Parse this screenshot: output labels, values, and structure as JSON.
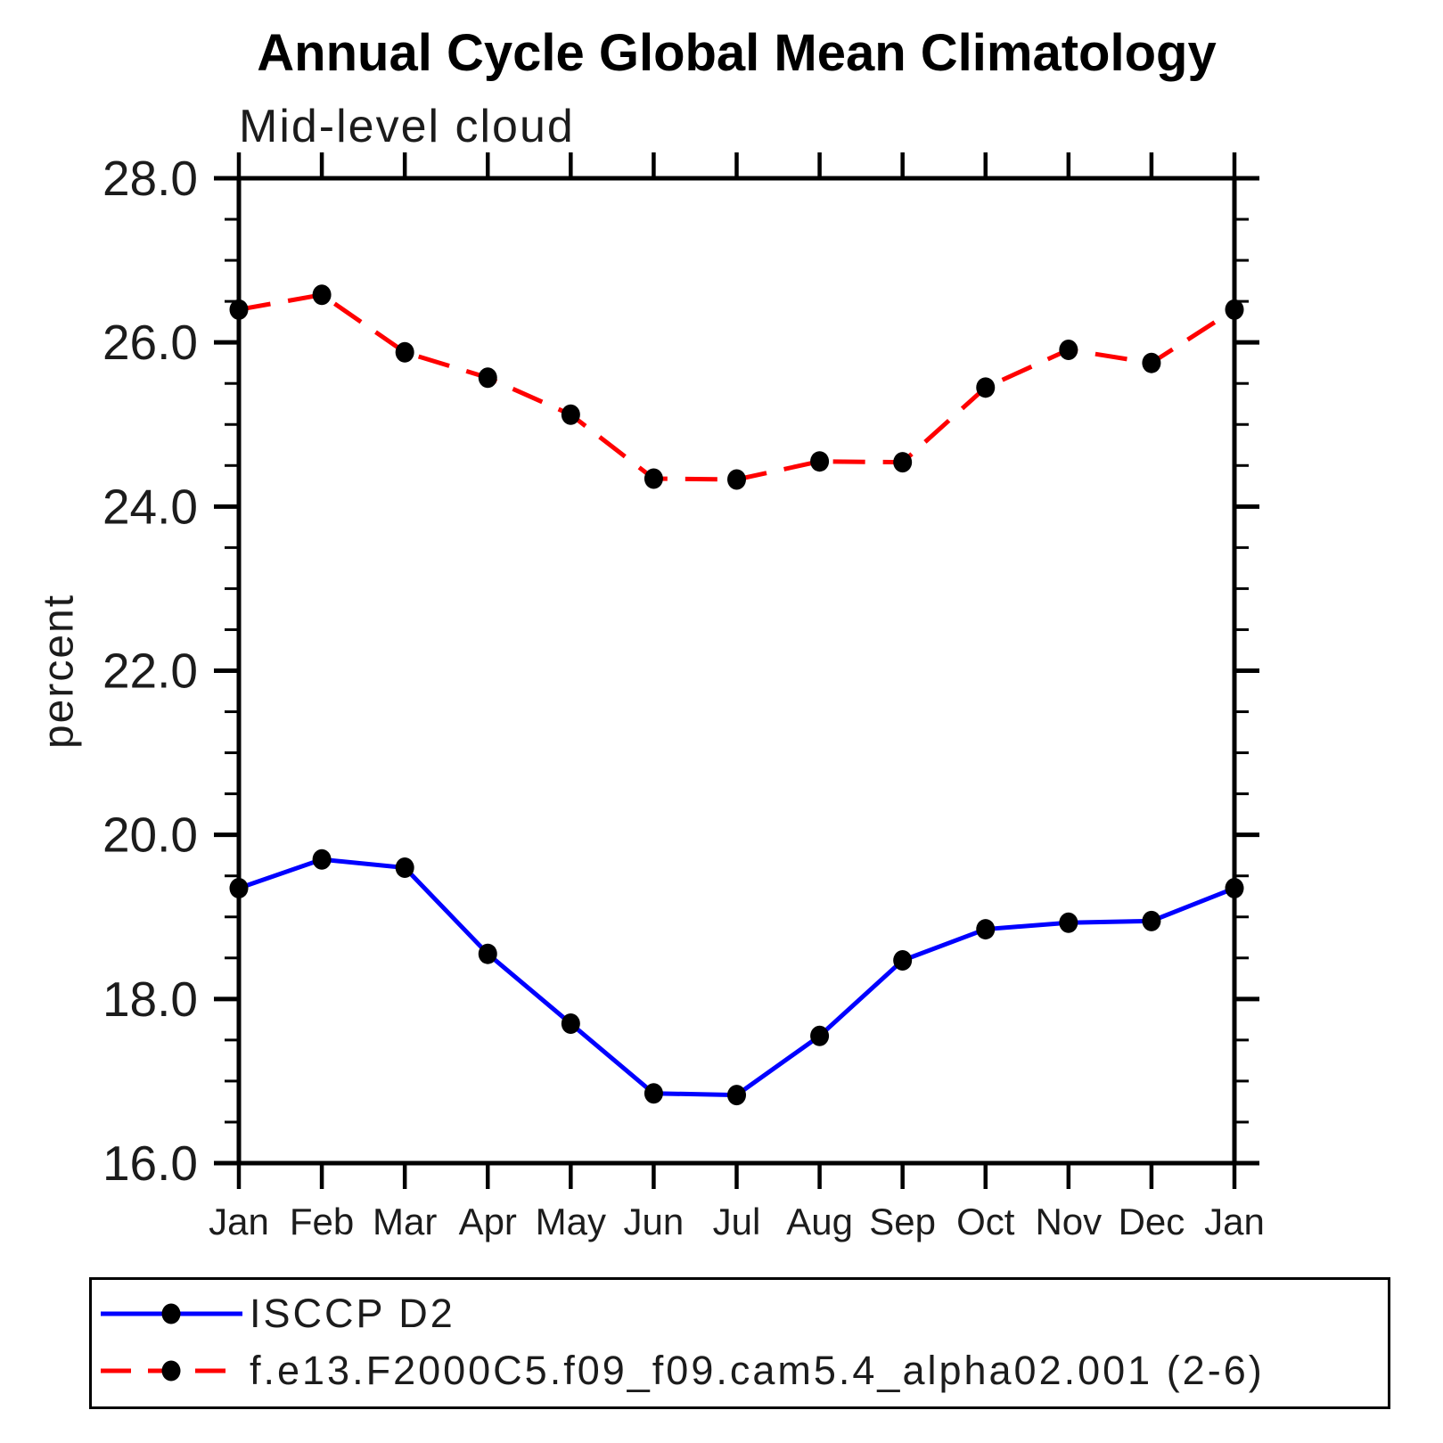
{
  "page": {
    "background": "#ffffff"
  },
  "header": {
    "title": "Annual Cycle Global Mean Climatology",
    "subtitle": "Mid-level cloud"
  },
  "chart_data": {
    "type": "line",
    "title": "Annual Cycle Global Mean Climatology",
    "subtitle": "Mid-level cloud",
    "xlabel": "",
    "ylabel": "percent",
    "categories": [
      "Jan",
      "Feb",
      "Mar",
      "Apr",
      "May",
      "Jun",
      "Jul",
      "Aug",
      "Sep",
      "Oct",
      "Nov",
      "Dec",
      "Jan"
    ],
    "ylim": [
      16.0,
      28.0
    ],
    "ytick_major_interval": 2.0,
    "ytick_minor_interval": 0.5,
    "ytick_labels": [
      "16.0",
      "18.0",
      "20.0",
      "22.0",
      "24.0",
      "26.0",
      "28.0"
    ],
    "grid": false,
    "legend_position": "bottom",
    "frame_color": "#000000",
    "marker_color": "#000000",
    "series": [
      {
        "name": "ISCCP D2",
        "color": "#0000ff",
        "line_style": "solid",
        "marker": "circle",
        "values": [
          19.35,
          19.7,
          19.6,
          18.55,
          17.7,
          16.85,
          16.83,
          17.55,
          18.47,
          18.85,
          18.93,
          18.95,
          19.35
        ]
      },
      {
        "name": "f.e13.F2000C5.f09_f09.cam5.4_alpha02.001 (2-6)",
        "color": "#ff0000",
        "line_style": "dashed",
        "marker": "circle",
        "values": [
          26.4,
          26.58,
          25.88,
          25.57,
          25.12,
          24.34,
          24.33,
          24.55,
          24.54,
          25.45,
          25.91,
          25.75,
          26.4
        ]
      }
    ]
  }
}
